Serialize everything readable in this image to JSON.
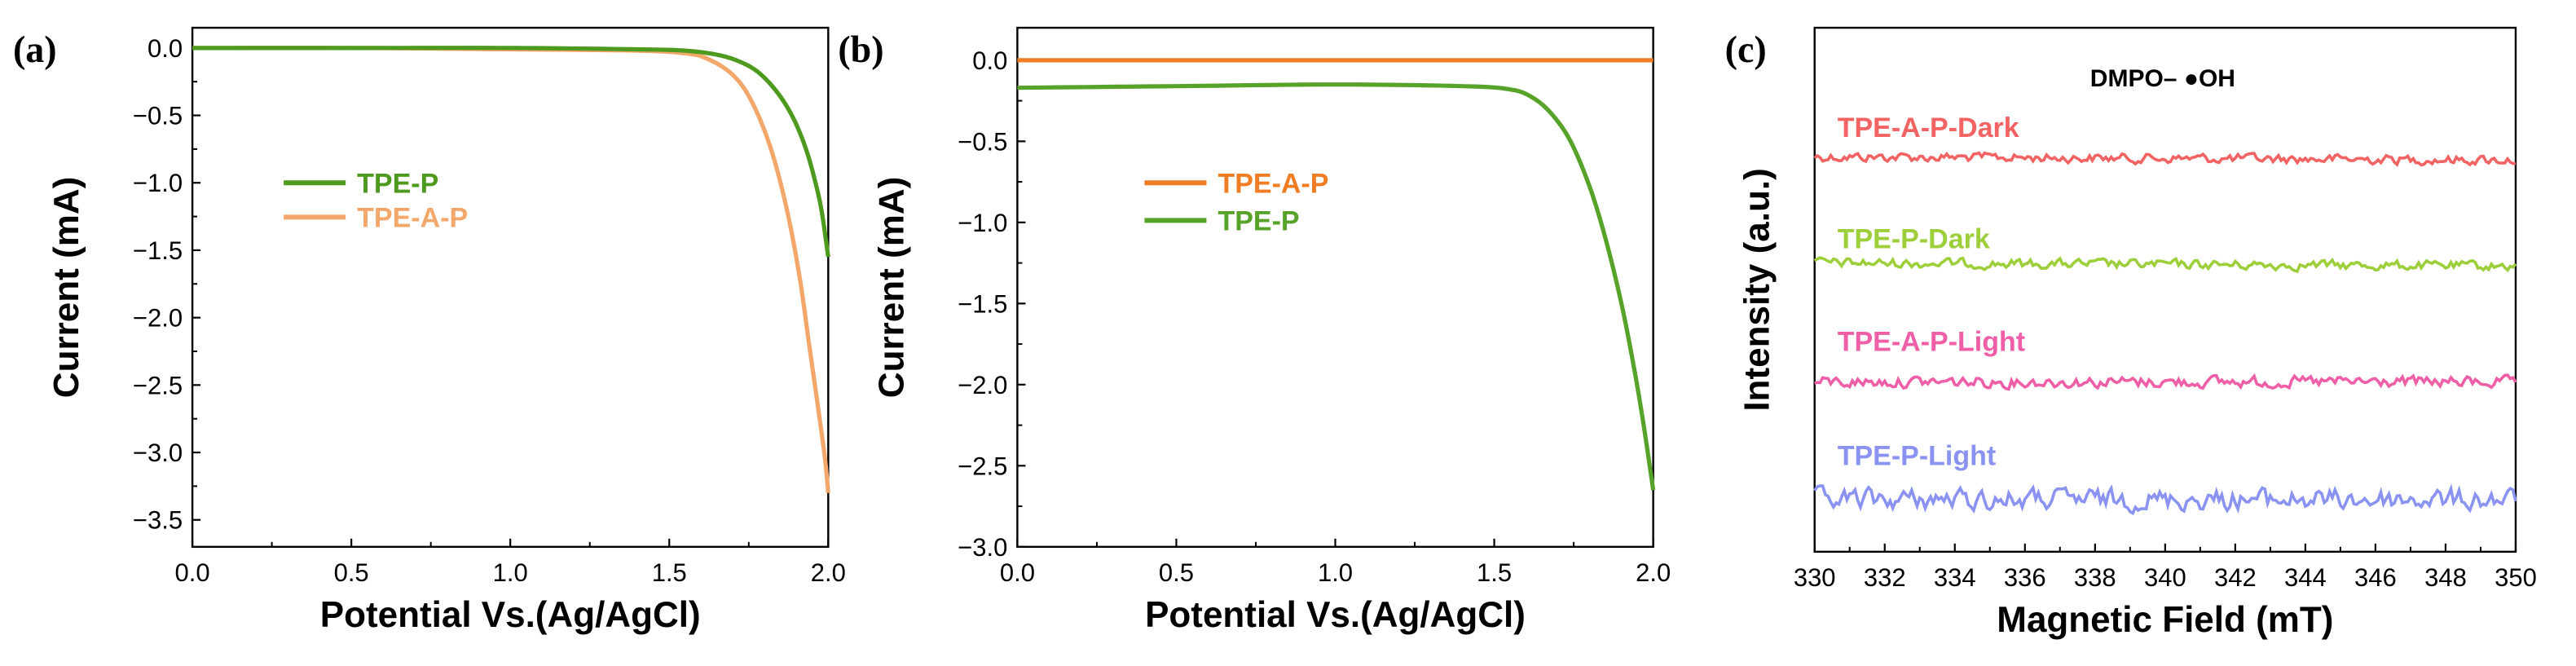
{
  "chart_data": [
    {
      "panel_label": "(a)",
      "type": "line",
      "xlabel": "Potential Vs.(Ag/AgCl)",
      "ylabel": "Current (mA)",
      "xlim": [
        0,
        2.0
      ],
      "ylim": [
        -3.7,
        0.15
      ],
      "xticks": [
        "0.0",
        "0.5",
        "1.0",
        "1.5",
        "2.0"
      ],
      "yticks": [
        "0.0",
        "-0.5",
        "-1.0",
        "-1.5",
        "-2.0",
        "-2.5",
        "-3.0",
        "-3.5"
      ],
      "legend_position": "center-left",
      "series": [
        {
          "name": "TPE-P",
          "color": "#4e9a1e",
          "x": [
            0,
            0.5,
            1.0,
            1.4,
            1.55,
            1.65,
            1.72,
            1.78,
            1.84,
            1.89,
            1.93,
            1.96,
            1.98,
            2.0
          ],
          "y": [
            0,
            0,
            0,
            -0.01,
            -0.02,
            -0.05,
            -0.1,
            -0.18,
            -0.33,
            -0.52,
            -0.75,
            -1.0,
            -1.22,
            -1.55
          ]
        },
        {
          "name": "TPE-A-P",
          "color": "#f4a76a",
          "x": [
            0,
            0.5,
            1.0,
            1.4,
            1.55,
            1.62,
            1.7,
            1.76,
            1.82,
            1.87,
            1.91,
            1.94,
            1.97,
            1.99,
            2.0
          ],
          "y": [
            0,
            0,
            -0.01,
            -0.02,
            -0.04,
            -0.08,
            -0.2,
            -0.4,
            -0.75,
            -1.2,
            -1.7,
            -2.2,
            -2.7,
            -3.05,
            -3.3
          ]
        }
      ]
    },
    {
      "panel_label": "(b)",
      "type": "line",
      "xlabel": "Potential Vs.(Ag/AgCl)",
      "ylabel": "Current (mA)",
      "xlim": [
        0,
        2.0
      ],
      "ylim": [
        -3.0,
        0.2
      ],
      "xticks": [
        "0.0",
        "0.5",
        "1.0",
        "1.5",
        "2.0"
      ],
      "yticks": [
        "0.0",
        "-0.5",
        "-1.0",
        "-1.5",
        "-2.0",
        "-2.5",
        "-3.0"
      ],
      "legend_position": "upper-left",
      "series": [
        {
          "name": "TPE-A-P",
          "color": "#f07d24",
          "x": [
            0,
            2.0
          ],
          "y": [
            0,
            0
          ]
        },
        {
          "name": "TPE-P",
          "color": "#57a32a",
          "x": [
            0,
            0.5,
            1.0,
            1.4,
            1.55,
            1.62,
            1.68,
            1.74,
            1.8,
            1.85,
            1.9,
            1.94,
            1.97,
            2.0
          ],
          "y": [
            -0.17,
            -0.16,
            -0.15,
            -0.16,
            -0.18,
            -0.23,
            -0.33,
            -0.5,
            -0.78,
            -1.1,
            -1.5,
            -1.9,
            -2.25,
            -2.65
          ]
        }
      ]
    },
    {
      "panel_label": "(c)",
      "type": "line",
      "xlabel": "Magnetic Field (mT)",
      "ylabel": "Intensity (a.u.)",
      "xlim": [
        330,
        350
      ],
      "xticks": [
        "330",
        "332",
        "334",
        "336",
        "338",
        "340",
        "342",
        "344",
        "346",
        "348",
        "350"
      ],
      "annotation": "DMPO– ●OH",
      "series": [
        {
          "name": "TPE-A-P-Dark",
          "color": "#f26363",
          "offset": 3,
          "noise": 0.12
        },
        {
          "name": "TPE-P-Dark",
          "color": "#9ccf3a",
          "offset": 2,
          "noise": 0.12
        },
        {
          "name": "TPE-A-P-Light",
          "color": "#ef5fa7",
          "offset": 1,
          "noise": 0.15
        },
        {
          "name": "TPE-P-Light",
          "color": "#8a93f1",
          "offset": 0,
          "noise": 0.25
        }
      ]
    }
  ]
}
